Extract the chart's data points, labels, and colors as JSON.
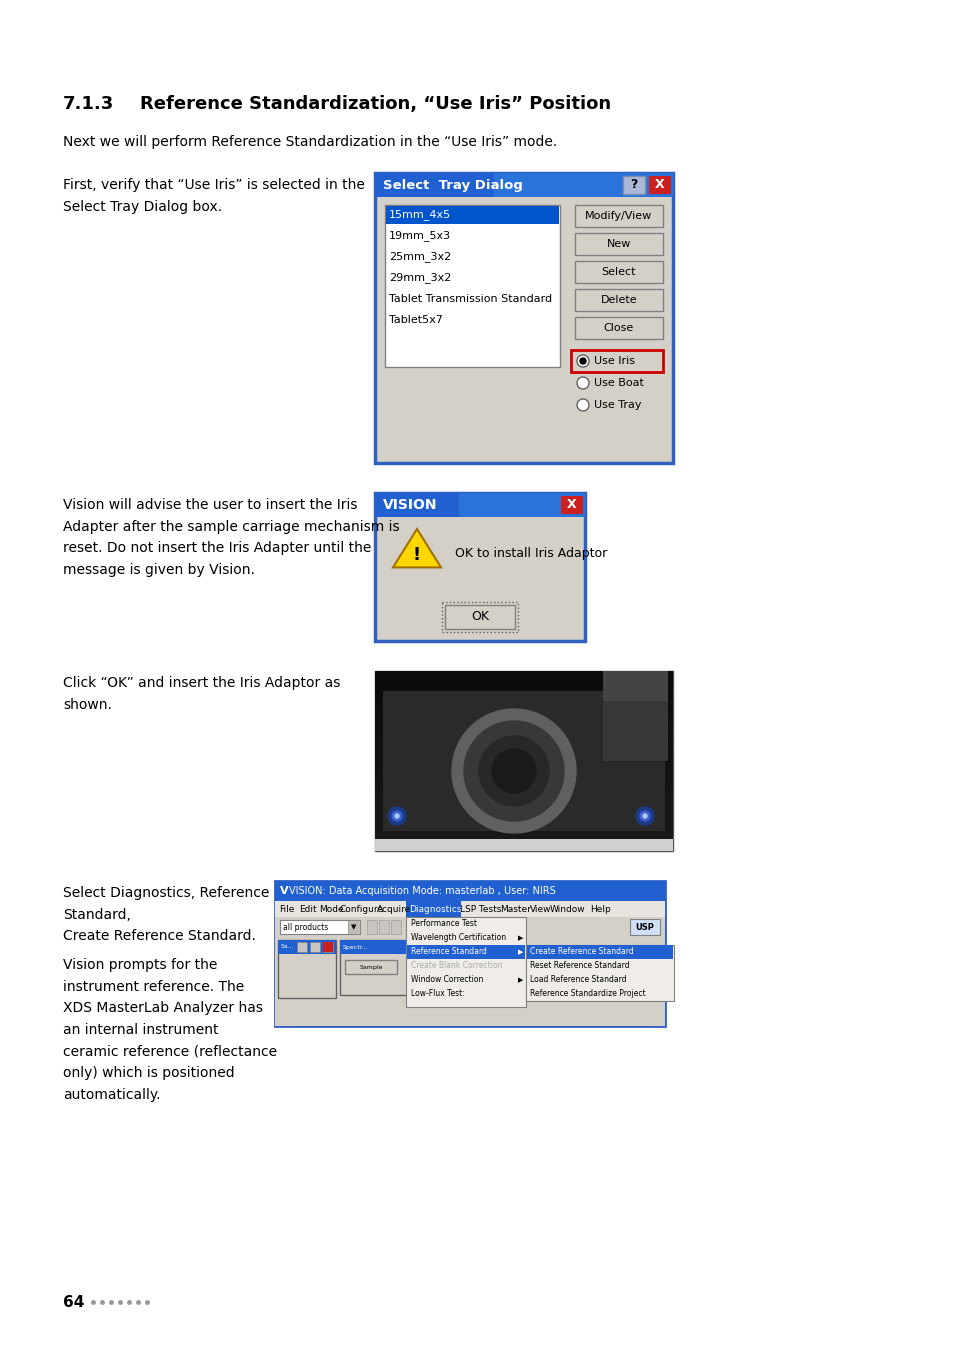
{
  "bg_color": "#ffffff",
  "section_number": "7.1.3",
  "section_title": "    Reference Standardization, “Use Iris” Position",
  "para1": "Next we will perform Reference Standardization in the “Use Iris” mode.",
  "left_text1": "First, verify that “Use Iris” is selected in the\nSelect Tray Dialog box.",
  "left_text2": "Vision will advise the user to insert the Iris\nAdapter after the sample carriage mechanism is\nreset. Do not insert the Iris Adapter until the\nmessage is given by Vision.",
  "left_text3": "Click “OK” and insert the Iris Adaptor as\nshown.",
  "left_text4_line1": "Select Diagnostics, Reference\nStandard,\nCreate Reference Standard.",
  "left_text4_line2": "Vision prompts for the\ninstrument reference. The\nXDS MasterLab Analyzer has\nan internal instrument\nceramic reference (reflectance\nonly) which is positioned\nautomatically.",
  "page_number": "64",
  "dot_color": "#999999",
  "title_font_size": 13,
  "body_font_size": 10,
  "small_font_size": 8.5
}
